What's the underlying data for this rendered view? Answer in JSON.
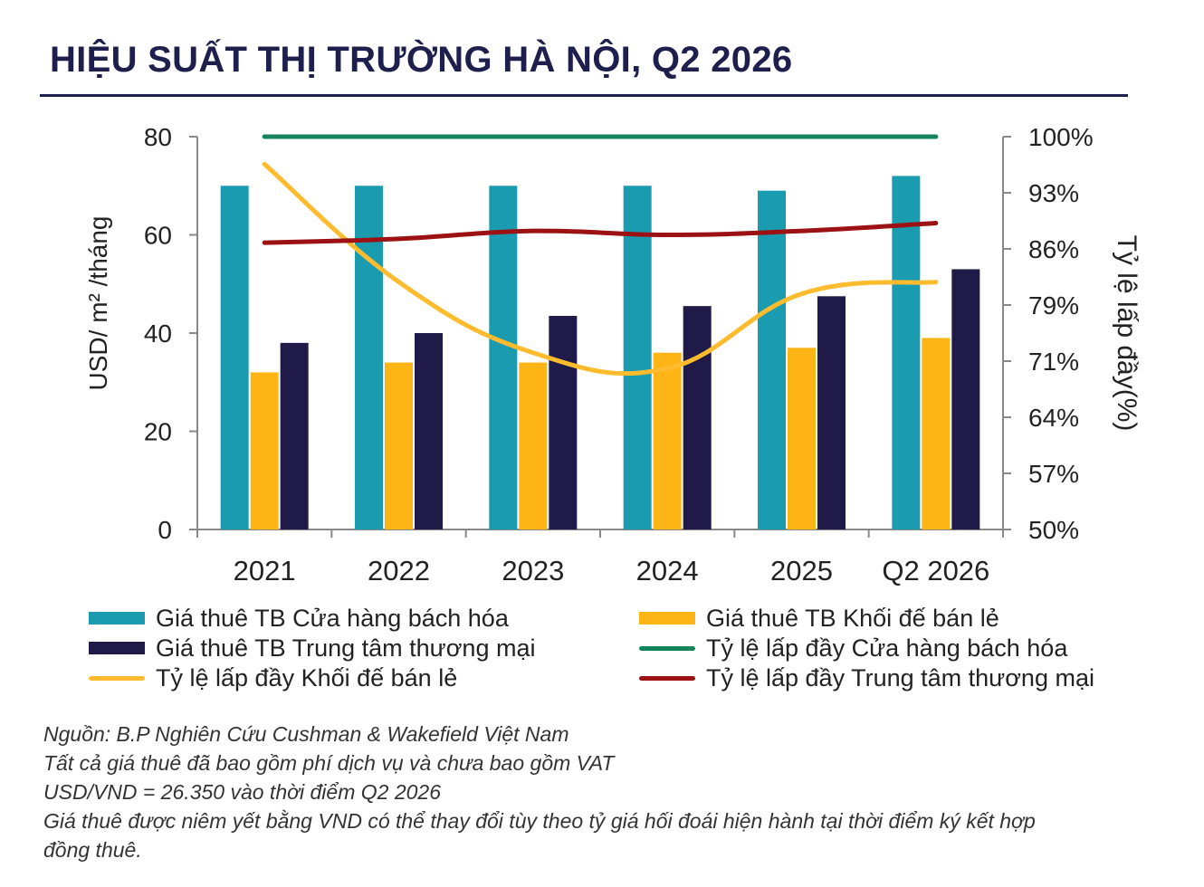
{
  "header": {
    "title": "HIỆU SUẤT THỊ TRƯỜNG HÀ NỘI, Q2 2026"
  },
  "chart_data": {
    "type": "bar",
    "categories": [
      "2021",
      "2022",
      "2023",
      "2024",
      "2025",
      "Q2 2026"
    ],
    "y_left": {
      "label": "USD/ m² /tháng",
      "ylim": [
        0,
        80
      ],
      "ticks": [
        "0",
        "20",
        "40",
        "60",
        "80"
      ]
    },
    "y_right": {
      "label": "Tỷ lệ lấp đầy(%)",
      "ylim": [
        50,
        100
      ],
      "ticks": [
        "50%",
        "57%",
        "64%",
        "71%",
        "79%",
        "86%",
        "93%",
        "100%"
      ]
    },
    "bar_series": [
      {
        "name": "Giá thuê TB Cửa hàng bách hóa",
        "color": "#1a9bb0",
        "values": [
          70,
          70,
          70,
          70,
          69,
          72
        ]
      },
      {
        "name": "Giá thuê TB Khối đế bán lẻ",
        "color": "#fdb515",
        "values": [
          32,
          34,
          34,
          36,
          37,
          39
        ]
      },
      {
        "name": "Giá thuê TB Trung tâm thương mại",
        "color": "#1f1a47",
        "values": [
          38,
          40,
          43.5,
          45.5,
          47.5,
          53
        ]
      }
    ],
    "line_series": [
      {
        "name": "Tỷ lệ lấp đầy Cửa hàng bách hóa",
        "color": "#14855a",
        "values": [
          100,
          100,
          100,
          100,
          100,
          100
        ]
      },
      {
        "name": "Tỷ lệ lấp đầy Khối đế bán lẻ",
        "color": "#fdbb2d",
        "values": [
          96.5,
          81.5,
          72.5,
          70.5,
          80,
          81.5
        ]
      },
      {
        "name": "Tỷ lệ lấp đầy Trung tâm thương mại",
        "color": "#9c1214",
        "values": [
          86.5,
          87,
          88,
          87.5,
          88,
          89
        ]
      }
    ],
    "legend_position": "bottom",
    "grid": false
  },
  "legend": {
    "items": [
      {
        "label": "Giá thuê TB Cửa hàng bách hóa",
        "kind": "bar",
        "color": "#1a9bb0"
      },
      {
        "label": "Giá thuê TB Khối đế bán lẻ",
        "kind": "bar",
        "color": "#fdb515"
      },
      {
        "label": "Giá thuê TB Trung tâm thương mại",
        "kind": "bar",
        "color": "#1f1a47"
      },
      {
        "label": "Tỷ lệ lấp đầy Cửa hàng bách hóa",
        "kind": "line",
        "color": "#14855a"
      },
      {
        "label": "Tỷ lệ lấp đầy Khối đế bán lẻ",
        "kind": "line",
        "color": "#fdbb2d"
      },
      {
        "label": "Tỷ lệ lấp đầy Trung tâm thương mại",
        "kind": "line",
        "color": "#9c1214"
      }
    ]
  },
  "notes": {
    "source": "Nguồn: B.P Nghiên Cứu Cushman & Wakefield Việt Nam",
    "line2": "Tất cả giá thuê đã bao gồm phí dịch vụ và chưa bao gồm VAT",
    "line3": "USD/VND = 26.350 vào thời điểm Q2 2026",
    "line4a": "Giá thuê được niêm yết bằng VND có thể thay đổi tùy theo tỷ giá hối đoái hiện hành tại thời điểm ký kết hợp",
    "line4b": "đồng thuê."
  }
}
